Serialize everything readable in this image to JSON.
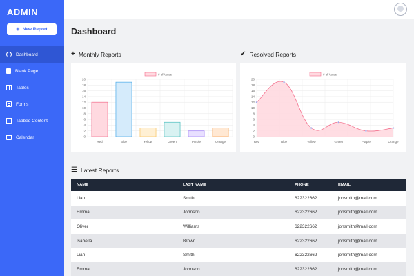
{
  "sidebar": {
    "brand": "ADMIN",
    "new_report_label": "New Report",
    "items": [
      {
        "label": "Dashboard",
        "icon": "dashboard-icon",
        "active": true
      },
      {
        "label": "Blank Page",
        "icon": "page-icon",
        "active": false
      },
      {
        "label": "Tables",
        "icon": "table-icon",
        "active": false
      },
      {
        "label": "Forms",
        "icon": "forms-icon",
        "active": false
      },
      {
        "label": "Tabbed Content",
        "icon": "tabs-icon",
        "active": false
      },
      {
        "label": "Calendar",
        "icon": "calendar-icon",
        "active": false
      }
    ],
    "accent": "#3b68f8"
  },
  "header": {
    "title": "Dashboard",
    "avatar_icon": "avatar-icon"
  },
  "monthly": {
    "title": "Monthly Reports",
    "icon": "plus-icon"
  },
  "resolved": {
    "title": "Resolved Reports",
    "icon": "check-icon"
  },
  "latest": {
    "title": "Latest Reports",
    "icon": "list-icon",
    "columns": [
      "NAME",
      "LAST NAME",
      "PHONE",
      "EMAIL"
    ],
    "rows": [
      [
        "Lian",
        "Smith",
        "622322662",
        "jonsmith@mail.com"
      ],
      [
        "Emma",
        "Johnson",
        "622322662",
        "jonsmith@mail.com"
      ],
      [
        "Oliver",
        "Williams",
        "622322662",
        "jonsmith@mail.com"
      ],
      [
        "Isabella",
        "Brown",
        "622322662",
        "jonsmith@mail.com"
      ],
      [
        "Lian",
        "Smith",
        "622322662",
        "jonsmith@mail.com"
      ],
      [
        "Emma",
        "Johnson",
        "622322662",
        "jonsmith@mail.com"
      ]
    ]
  },
  "chart_data": [
    {
      "type": "bar",
      "categories": [
        "Red",
        "Blue",
        "Yellow",
        "Green",
        "Purple",
        "Orange"
      ],
      "series": [
        {
          "name": "# of Votes",
          "values": [
            12,
            19,
            3,
            5,
            2,
            3
          ]
        }
      ],
      "ylim": [
        0,
        20
      ],
      "yticks": [
        "0",
        "2",
        "4",
        "6",
        "8",
        "10",
        "12",
        "14",
        "16",
        "18",
        "20"
      ],
      "grid": true,
      "legend": "top",
      "fills": [
        "#ffd9e0",
        "#d5ebfb",
        "#fff0d4",
        "#d9f2f2",
        "#e8dfff",
        "#ffe8d3"
      ],
      "strokes": [
        "#f36c8a",
        "#48a8e8",
        "#f9c35e",
        "#4dbfbf",
        "#9d7cf5",
        "#f9a04d"
      ]
    },
    {
      "type": "area",
      "categories": [
        "Red",
        "Blue",
        "Yellow",
        "Green",
        "Purple",
        "Orange"
      ],
      "series": [
        {
          "name": "# of Votes",
          "values": [
            12,
            19,
            3,
            5,
            2,
            3
          ]
        }
      ],
      "ylim": [
        0,
        20
      ],
      "yticks": [
        "0",
        "2",
        "4",
        "6",
        "8",
        "10",
        "12",
        "14",
        "16",
        "18",
        "20"
      ],
      "grid": true,
      "legend": "top",
      "fill": "#ffd9e0",
      "stroke": "#f36c8a",
      "point": "#9fa8e8"
    }
  ]
}
